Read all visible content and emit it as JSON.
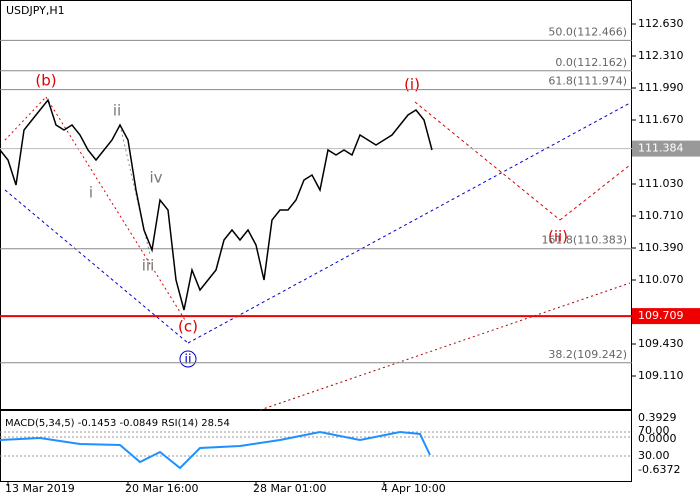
{
  "chart_data": {
    "type": "line",
    "title": "USDJPY,H1",
    "values": [
      111.37,
      111.27,
      111.02,
      111.57,
      111.67,
      111.77,
      111.87,
      111.62,
      111.57,
      111.62,
      111.52,
      111.37,
      111.27,
      111.37,
      111.47,
      111.62,
      111.47,
      110.97,
      110.57,
      110.37,
      110.87,
      110.77,
      110.07,
      109.77,
      110.17,
      109.97,
      110.07,
      110.17,
      110.47,
      110.57,
      110.47,
      110.57,
      110.42,
      110.07,
      110.67,
      110.77,
      110.77,
      110.87,
      111.07,
      111.12,
      110.97,
      111.37,
      111.32,
      111.37,
      111.32,
      111.52,
      111.47,
      111.42,
      111.47,
      111.52,
      111.62,
      111.72,
      111.77,
      111.67,
      111.37
    ],
    "color": "#000000",
    "xlim": [
      0,
      78.5
    ],
    "xticks": [
      {
        "value": 1,
        "label": "13 Mar 2019"
      },
      {
        "value": 16,
        "label": "20 Mar 16:00"
      },
      {
        "value": 32,
        "label": "28 Mar 01:00"
      },
      {
        "value": 48,
        "label": "4 Apr 10:00"
      }
    ],
    "ylim": [
      108.77,
      112.87
    ],
    "yticks": [
      {
        "value": 112.63,
        "label": "112.630"
      },
      {
        "value": 112.31,
        "label": "112.310"
      },
      {
        "value": 111.99,
        "label": "111.990"
      },
      {
        "value": 111.67,
        "label": "111.670"
      },
      {
        "value": 111.03,
        "label": "111.030"
      },
      {
        "value": 110.71,
        "label": "110.710"
      },
      {
        "value": 110.39,
        "label": "110.390"
      },
      {
        "value": 110.07,
        "label": "110.070"
      },
      {
        "value": 109.43,
        "label": "109.430"
      },
      {
        "value": 109.11,
        "label": "109.110"
      }
    ],
    "levels": [
      {
        "value": 112.466,
        "label": "50.0(112.466)"
      },
      {
        "value": 112.162,
        "label": "0.0(112.162)"
      },
      {
        "value": 111.974,
        "label": "61.8(111.974)"
      },
      {
        "value": 110.383,
        "label": "161.8(110.383)"
      },
      {
        "value": 109.242,
        "label": "38.2(109.242)"
      }
    ],
    "current_price": 111.384,
    "support_level": 109.709,
    "annotations": [
      "(b)",
      "(i)",
      "(c)",
      "(ii)",
      "i",
      "ii",
      "iii",
      "iv",
      "ii"
    ],
    "indicator_label": "MACD(5,34,5) -0.1453 -0.0849 RSI(14) 28.54",
    "indicator_axis": [
      "0.3929",
      "70.00",
      "0.0000",
      "30.00",
      "-0.6372"
    ]
  }
}
